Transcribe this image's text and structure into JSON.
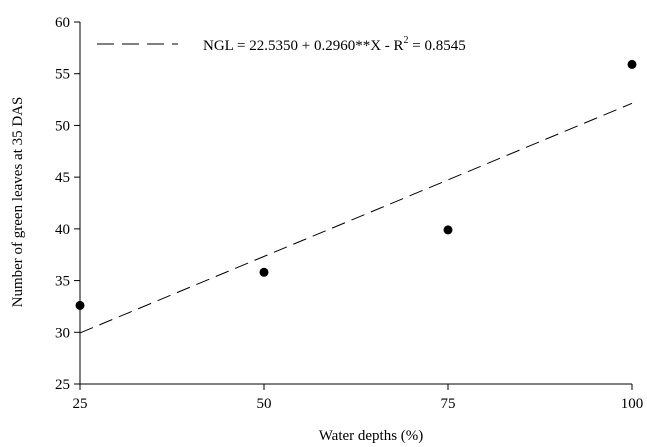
{
  "chart_data": {
    "type": "scatter",
    "xlabel": "Water depths (%)",
    "ylabel": "Number of green leaves at 35 DAS",
    "xlim": [
      25,
      100
    ],
    "ylim": [
      25,
      60
    ],
    "x_ticks": [
      25,
      50,
      75,
      100
    ],
    "y_ticks": [
      25,
      30,
      35,
      40,
      45,
      50,
      55,
      60
    ],
    "grid": false,
    "legend_position": "top-left",
    "series": [
      {
        "points": [
          {
            "x": 25,
            "y": 32.6
          },
          {
            "x": 50,
            "y": 35.8
          },
          {
            "x": 75,
            "y": 39.9
          },
          {
            "x": 100,
            "y": 55.9
          }
        ],
        "color": "#000000"
      }
    ],
    "regression": {
      "intercept": 22.535,
      "slope": 0.296,
      "style": "dashed",
      "color": "#000000",
      "equation_main": "NGL = 22.5350 + 0.2960**X - R",
      "equation_sup": "2",
      "equation_tail": " = 0.8545"
    }
  }
}
